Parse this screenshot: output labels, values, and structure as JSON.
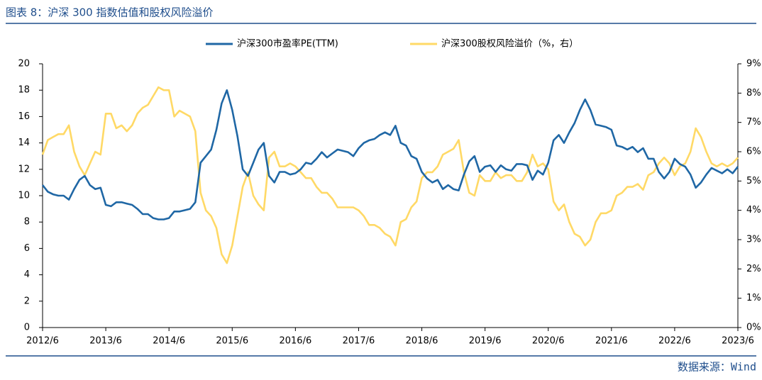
{
  "header": {
    "title": "图表 8：沪深 300 指数估值和股权风险溢价"
  },
  "footer": {
    "source": "数据来源：Wind"
  },
  "chart_data": {
    "type": "line",
    "x": [
      "2012/6",
      "2012/7",
      "2012/8",
      "2012/9",
      "2012/10",
      "2012/11",
      "2012/12",
      "2013/1",
      "2013/2",
      "2013/3",
      "2013/4",
      "2013/5",
      "2013/6",
      "2013/7",
      "2013/8",
      "2013/9",
      "2013/10",
      "2013/11",
      "2013/12",
      "2014/1",
      "2014/2",
      "2014/3",
      "2014/4",
      "2014/5",
      "2014/6",
      "2014/7",
      "2014/8",
      "2014/9",
      "2014/10",
      "2014/11",
      "2014/12",
      "2015/1",
      "2015/2",
      "2015/3",
      "2015/4",
      "2015/5",
      "2015/6",
      "2015/7",
      "2015/8",
      "2015/9",
      "2015/10",
      "2015/11",
      "2015/12",
      "2016/1",
      "2016/2",
      "2016/3",
      "2016/4",
      "2016/5",
      "2016/6",
      "2016/7",
      "2016/8",
      "2016/9",
      "2016/10",
      "2016/11",
      "2016/12",
      "2017/1",
      "2017/2",
      "2017/3",
      "2017/4",
      "2017/5",
      "2017/6",
      "2017/7",
      "2017/8",
      "2017/9",
      "2017/10",
      "2017/11",
      "2017/12",
      "2018/1",
      "2018/2",
      "2018/3",
      "2018/4",
      "2018/5",
      "2018/6",
      "2018/7",
      "2018/8",
      "2018/9",
      "2018/10",
      "2018/11",
      "2018/12",
      "2019/1",
      "2019/2",
      "2019/3",
      "2019/4",
      "2019/5",
      "2019/6",
      "2019/7",
      "2019/8",
      "2019/9",
      "2019/10",
      "2019/11",
      "2019/12",
      "2020/1",
      "2020/2",
      "2020/3",
      "2020/4",
      "2020/5",
      "2020/6",
      "2020/7",
      "2020/8",
      "2020/9",
      "2020/10",
      "2020/11",
      "2020/12",
      "2021/1",
      "2021/2",
      "2021/3",
      "2021/4",
      "2021/5",
      "2021/6",
      "2021/7",
      "2021/8",
      "2021/9",
      "2021/10",
      "2021/11",
      "2021/12",
      "2022/1",
      "2022/2",
      "2022/3",
      "2022/4",
      "2022/5",
      "2022/6",
      "2022/7",
      "2022/8",
      "2022/9",
      "2022/10",
      "2022/11",
      "2022/12",
      "2023/1",
      "2023/2",
      "2023/3",
      "2023/4",
      "2023/5",
      "2023/6"
    ],
    "series": [
      {
        "name": "沪深300市盈率PE(TTM)",
        "color": "#1f67a5",
        "values": [
          10.8,
          10.3,
          10.1,
          10.0,
          10.0,
          9.7,
          10.5,
          11.2,
          11.5,
          10.8,
          10.5,
          10.6,
          9.3,
          9.2,
          9.5,
          9.5,
          9.4,
          9.3,
          9.0,
          8.6,
          8.6,
          8.3,
          8.2,
          8.2,
          8.3,
          8.8,
          8.8,
          8.9,
          9.0,
          9.5,
          12.5,
          13.0,
          13.5,
          15.0,
          17.0,
          18.0,
          16.5,
          14.5,
          12.0,
          11.5,
          12.5,
          13.5,
          14.0,
          11.5,
          11.0,
          11.8,
          11.8,
          11.6,
          11.7,
          12.0,
          12.5,
          12.4,
          12.8,
          13.3,
          12.9,
          13.2,
          13.5,
          13.4,
          13.3,
          13.0,
          13.6,
          14.0,
          14.2,
          14.3,
          14.6,
          14.8,
          14.6,
          15.3,
          14.0,
          13.8,
          13.0,
          12.8,
          11.8,
          11.3,
          11.0,
          11.2,
          10.5,
          10.8,
          10.5,
          10.4,
          11.6,
          12.6,
          13.0,
          11.8,
          12.2,
          12.3,
          11.8,
          12.3,
          12.0,
          11.9,
          12.4,
          12.4,
          12.3,
          11.2,
          11.9,
          11.6,
          12.5,
          14.2,
          14.6,
          14.0,
          14.8,
          15.5,
          16.5,
          17.3,
          16.5,
          15.4,
          15.3,
          15.2,
          15.0,
          13.8,
          13.7,
          13.5,
          13.7,
          13.3,
          13.6,
          12.8,
          12.8,
          11.8,
          11.3,
          11.8,
          12.8,
          12.4,
          12.2,
          11.6,
          10.6,
          11.0,
          11.6,
          12.1,
          11.9,
          11.7,
          12.0,
          11.7,
          12.2
        ]
      },
      {
        "name": "沪深300股权风险溢价（%，右）",
        "color": "#ffd966",
        "axis": "y2",
        "values": [
          5.9,
          6.4,
          6.5,
          6.6,
          6.6,
          6.9,
          6.0,
          5.5,
          5.2,
          5.6,
          6.0,
          5.9,
          7.3,
          7.3,
          6.8,
          6.9,
          6.7,
          6.9,
          7.3,
          7.5,
          7.6,
          7.9,
          8.2,
          8.1,
          8.1,
          7.2,
          7.4,
          7.3,
          7.2,
          6.7,
          4.6,
          4.0,
          3.8,
          3.4,
          2.5,
          2.2,
          2.8,
          3.8,
          4.8,
          5.3,
          4.5,
          4.2,
          4.0,
          5.8,
          6.0,
          5.5,
          5.5,
          5.6,
          5.5,
          5.3,
          5.1,
          5.1,
          4.8,
          4.6,
          4.6,
          4.4,
          4.1,
          4.1,
          4.1,
          4.1,
          4.0,
          3.8,
          3.5,
          3.5,
          3.4,
          3.2,
          3.1,
          2.8,
          3.6,
          3.7,
          4.1,
          4.3,
          5.1,
          5.3,
          5.3,
          5.5,
          5.9,
          6.0,
          6.1,
          6.4,
          5.3,
          4.6,
          4.5,
          5.2,
          5.0,
          5.0,
          5.3,
          5.1,
          5.2,
          5.2,
          5.0,
          5.0,
          5.3,
          5.9,
          5.5,
          5.6,
          5.4,
          4.3,
          4.0,
          4.2,
          3.6,
          3.2,
          3.1,
          2.8,
          3.0,
          3.6,
          3.9,
          3.9,
          4.0,
          4.5,
          4.6,
          4.8,
          4.8,
          4.9,
          4.7,
          5.2,
          5.3,
          5.6,
          5.8,
          5.6,
          5.2,
          5.5,
          5.6,
          6.0,
          6.8,
          6.5,
          6.0,
          5.6,
          5.5,
          5.6,
          5.5,
          5.6,
          5.8
        ]
      }
    ],
    "xticks": [
      "2012/6",
      "2013/6",
      "2014/6",
      "2015/6",
      "2016/6",
      "2017/6",
      "2018/6",
      "2019/6",
      "2020/6",
      "2021/6",
      "2022/6",
      "2023/6"
    ],
    "ylim": [
      0,
      20
    ],
    "yticks": [
      0,
      2,
      4,
      6,
      8,
      10,
      12,
      14,
      16,
      18,
      20
    ],
    "y2lim": [
      0,
      9
    ],
    "y2ticks": [
      {
        "value": 0,
        "label": "0%"
      },
      {
        "value": 1,
        "label": "1%"
      },
      {
        "value": 2,
        "label": "2%"
      },
      {
        "value": 3,
        "label": "3%"
      },
      {
        "value": 4,
        "label": "4%"
      },
      {
        "value": 5,
        "label": "5%"
      },
      {
        "value": 6,
        "label": "6%"
      },
      {
        "value": 7,
        "label": "7%"
      },
      {
        "value": 8,
        "label": "8%"
      },
      {
        "value": 9,
        "label": "9%"
      }
    ],
    "legend": "top",
    "grid": false
  }
}
